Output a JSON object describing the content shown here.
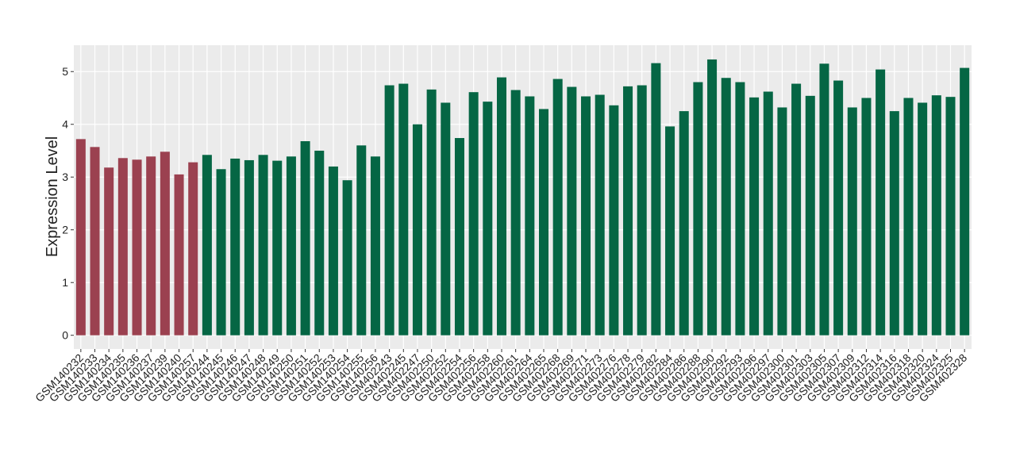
{
  "chart_data": {
    "type": "bar",
    "y_label": "Expression Level",
    "categories": [
      "GSM140232",
      "GSM140233",
      "GSM140234",
      "GSM140235",
      "GSM140236",
      "GSM140237",
      "GSM140239",
      "GSM140240",
      "GSM140257",
      "GSM140244",
      "GSM140245",
      "GSM140246",
      "GSM140247",
      "GSM140248",
      "GSM140249",
      "GSM140250",
      "GSM140251",
      "GSM140252",
      "GSM140253",
      "GSM140254",
      "GSM140255",
      "GSM140256",
      "GSM402243",
      "GSM402245",
      "GSM402247",
      "GSM402250",
      "GSM402252",
      "GSM402254",
      "GSM402256",
      "GSM402258",
      "GSM402260",
      "GSM402261",
      "GSM402264",
      "GSM402265",
      "GSM402268",
      "GSM402269",
      "GSM402271",
      "GSM402273",
      "GSM402276",
      "GSM402278",
      "GSM402279",
      "GSM402282",
      "GSM402284",
      "GSM402286",
      "GSM402288",
      "GSM402290",
      "GSM402292",
      "GSM402293",
      "GSM402296",
      "GSM402297",
      "GSM402300",
      "GSM402301",
      "GSM402303",
      "GSM402305",
      "GSM402307",
      "GSM402309",
      "GSM402312",
      "GSM402314",
      "GSM402316",
      "GSM402318",
      "GSM402320",
      "GSM402324",
      "GSM402325",
      "GSM402328"
    ],
    "values": [
      3.72,
      3.57,
      3.18,
      3.36,
      3.33,
      3.39,
      3.48,
      3.05,
      3.28,
      3.42,
      3.15,
      3.35,
      3.32,
      3.42,
      3.31,
      3.39,
      3.68,
      3.5,
      3.2,
      2.94,
      3.6,
      3.39,
      4.74,
      4.77,
      4.0,
      4.66,
      4.41,
      3.74,
      4.61,
      4.43,
      4.89,
      4.65,
      4.53,
      4.29,
      4.86,
      4.71,
      4.53,
      4.56,
      4.36,
      4.72,
      4.74,
      5.16,
      3.96,
      4.25,
      4.8,
      5.23,
      4.88,
      4.8,
      4.51,
      4.62,
      4.32,
      4.77,
      4.54,
      5.15,
      4.83,
      4.32,
      4.5,
      5.04,
      4.25,
      4.5,
      4.41,
      4.55,
      4.52,
      5.07
    ],
    "colors": [
      "#9b4150",
      "#9b4150",
      "#9b4150",
      "#9b4150",
      "#9b4150",
      "#9b4150",
      "#9b4150",
      "#9b4150",
      "#9b4150",
      "#056644",
      "#056644",
      "#056644",
      "#056644",
      "#056644",
      "#056644",
      "#056644",
      "#056644",
      "#056644",
      "#056644",
      "#056644",
      "#056644",
      "#056644",
      "#056644",
      "#056644",
      "#056644",
      "#056644",
      "#056644",
      "#056644",
      "#056644",
      "#056644",
      "#056644",
      "#056644",
      "#056644",
      "#056644",
      "#056644",
      "#056644",
      "#056644",
      "#056644",
      "#056644",
      "#056644",
      "#056644",
      "#056644",
      "#056644",
      "#056644",
      "#056644",
      "#056644",
      "#056644",
      "#056644",
      "#056644",
      "#056644",
      "#056644",
      "#056644",
      "#056644",
      "#056644",
      "#056644",
      "#056644",
      "#056644",
      "#056644",
      "#056644",
      "#056644",
      "#056644",
      "#056644",
      "#056644",
      "#056644"
    ],
    "ylim": [
      -0.26,
      5.5
    ],
    "yticks": [
      0,
      1,
      2,
      3,
      4,
      5
    ],
    "grid": true
  }
}
